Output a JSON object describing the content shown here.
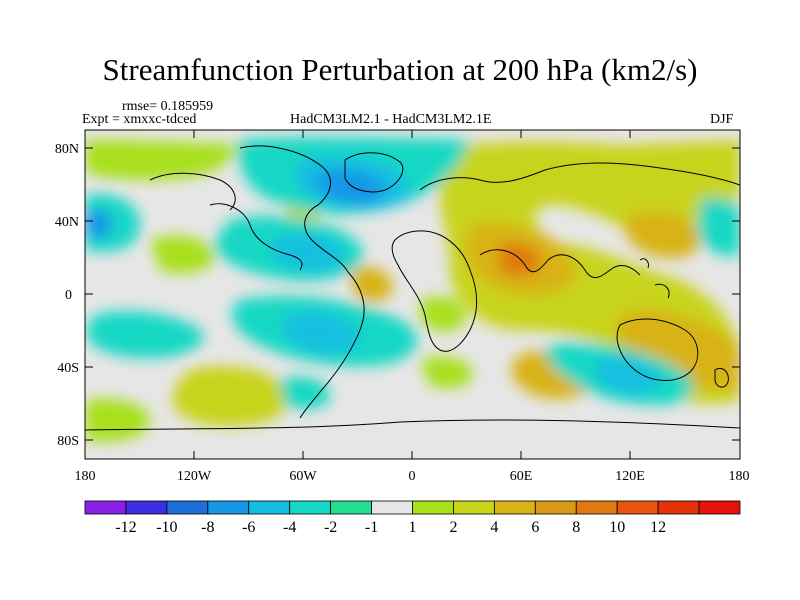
{
  "title": "Streamfunction Perturbation at 200 hPa (km2/s)",
  "rmse_label": "rmse= 0.185959",
  "expt_label": "Expt = xmxxc-tdced",
  "center_label": "HadCM3LM2.1 - HadCM3LM2.1E",
  "season_label": "DJF",
  "lat_ticks": [
    "80N",
    "40N",
    "0",
    "40S",
    "80S"
  ],
  "lon_ticks": [
    "180",
    "120W",
    "60W",
    "0",
    "60E",
    "120E",
    "180"
  ],
  "colorbar": {
    "colors": [
      "#8a1fe6",
      "#3b2fe0",
      "#1d6fdc",
      "#1596e6",
      "#12bfe0",
      "#15d8c4",
      "#22e08f",
      "#e6e6e6",
      "#a8e01a",
      "#c8d41a",
      "#d8b316",
      "#d89a14",
      "#e07a10",
      "#e6560c",
      "#e63208",
      "#e6120a"
    ],
    "labels": [
      "-12",
      "-10",
      "-8",
      "-6",
      "-4",
      "-2",
      "-1",
      "1",
      "2",
      "4",
      "6",
      "8",
      "10",
      "12"
    ]
  },
  "legend_colors": {
    "background": "#e6e6e6",
    "coast": "#000000"
  }
}
